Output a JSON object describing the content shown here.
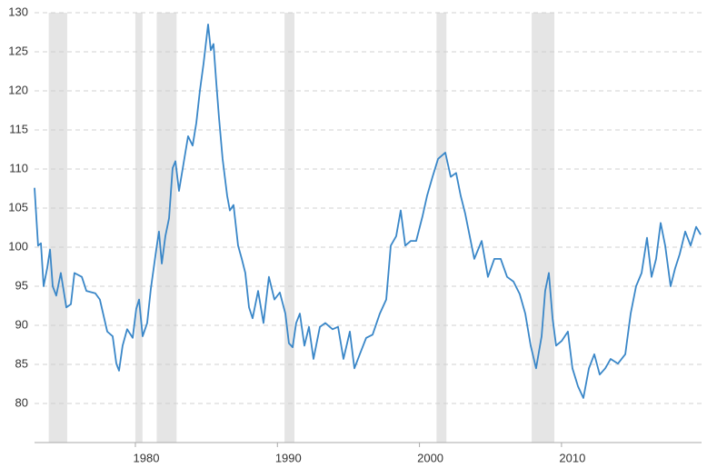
{
  "chart_data": {
    "type": "line",
    "xlim": [
      1972.9,
      2019.86
    ],
    "xticks": [
      1980,
      1990,
      2000,
      2010
    ],
    "ylim": [
      75,
      130
    ],
    "yticks": [
      80,
      85,
      90,
      95,
      100,
      105,
      110,
      115,
      120,
      125,
      130
    ],
    "grid": true,
    "shaded_periods": [
      [
        1973.9,
        1975.2
      ],
      [
        1980.0,
        1980.5
      ],
      [
        1981.5,
        1982.9
      ],
      [
        1990.5,
        1991.2
      ],
      [
        2001.2,
        2001.9
      ],
      [
        2007.9,
        2009.5
      ]
    ],
    "shade_color": "#e5e5e5",
    "series": [
      {
        "color": "#3a87c8",
        "x": [
          1972.9,
          1973.15,
          1973.35,
          1973.54,
          1973.79,
          1973.99,
          1974.18,
          1974.43,
          1974.75,
          1975.14,
          1975.46,
          1975.71,
          1976.23,
          1976.55,
          1977.18,
          1977.5,
          1978.02,
          1978.4,
          1978.66,
          1978.85,
          1979.1,
          1979.42,
          1979.81,
          1980.06,
          1980.26,
          1980.51,
          1980.83,
          1981.09,
          1981.47,
          1981.66,
          1981.86,
          1982.11,
          1982.37,
          1982.62,
          1982.82,
          1983.07,
          1983.39,
          1983.71,
          1984.03,
          1984.29,
          1984.54,
          1984.8,
          1985.12,
          1985.31,
          1985.5,
          1985.69,
          1985.89,
          1986.14,
          1986.46,
          1986.65,
          1986.91,
          1987.23,
          1987.49,
          1987.74,
          1988.0,
          1988.25,
          1988.64,
          1989.02,
          1989.4,
          1989.79,
          1990.17,
          1990.56,
          1990.81,
          1991.07,
          1991.32,
          1991.58,
          1991.9,
          1992.22,
          1992.54,
          1992.99,
          1993.37,
          1993.88,
          1994.27,
          1994.65,
          1995.1,
          1995.42,
          1995.8,
          1996.25,
          1996.7,
          1997.21,
          1997.66,
          1997.98,
          1998.36,
          1998.68,
          1999.0,
          1999.39,
          1999.77,
          2000.22,
          2000.54,
          2000.92,
          2001.31,
          2001.82,
          2002.2,
          2002.58,
          2002.9,
          2003.22,
          2003.54,
          2003.86,
          2004.38,
          2004.82,
          2005.27,
          2005.72,
          2006.17,
          2006.62,
          2007.06,
          2007.45,
          2007.83,
          2008.21,
          2008.6,
          2008.85,
          2009.11,
          2009.37,
          2009.62,
          2010.01,
          2010.45,
          2010.77,
          2011.16,
          2011.54,
          2011.93,
          2012.31,
          2012.69,
          2013.08,
          2013.46,
          2013.97,
          2014.49,
          2014.87,
          2015.25,
          2015.64,
          2016.02,
          2016.34,
          2016.66,
          2016.98,
          2017.3,
          2017.68,
          2018.0,
          2018.32,
          2018.71,
          2019.09,
          2019.48,
          2019.8
        ],
        "values": [
          107.6,
          100.2,
          100.5,
          95.0,
          97.3,
          99.7,
          95.0,
          93.8,
          96.7,
          92.3,
          92.7,
          96.7,
          96.2,
          94.4,
          94.1,
          93.3,
          89.2,
          88.6,
          85.1,
          84.2,
          87.4,
          89.5,
          88.4,
          92.1,
          93.3,
          88.6,
          90.3,
          94.7,
          99.7,
          102.0,
          97.9,
          101.4,
          103.7,
          110.1,
          111.0,
          107.2,
          110.7,
          114.2,
          113.0,
          115.9,
          120.0,
          123.5,
          128.5,
          125.2,
          126.0,
          121.2,
          116.5,
          111.3,
          106.6,
          104.7,
          105.4,
          100.2,
          98.5,
          96.7,
          92.3,
          90.9,
          94.4,
          90.3,
          96.2,
          93.3,
          94.2,
          91.5,
          87.7,
          87.2,
          90.3,
          91.5,
          87.4,
          89.8,
          85.7,
          89.8,
          90.3,
          89.5,
          89.8,
          85.7,
          89.2,
          84.5,
          86.3,
          88.4,
          88.8,
          91.5,
          93.3,
          100.2,
          101.4,
          104.7,
          100.2,
          100.8,
          100.8,
          104.0,
          106.6,
          109.0,
          111.3,
          112.1,
          109.0,
          109.5,
          106.6,
          104.3,
          101.4,
          98.5,
          100.8,
          96.2,
          98.5,
          98.5,
          96.2,
          95.6,
          94.0,
          91.5,
          87.4,
          84.5,
          88.6,
          94.4,
          96.7,
          90.9,
          87.4,
          88.0,
          89.2,
          84.5,
          82.2,
          80.7,
          84.5,
          86.3,
          83.7,
          84.5,
          85.7,
          85.1,
          86.3,
          91.5,
          95.0,
          96.7,
          101.2,
          96.2,
          98.5,
          103.1,
          100.2,
          95.0,
          97.3,
          99.1,
          102.0,
          100.2,
          102.6,
          101.6
        ]
      }
    ]
  }
}
